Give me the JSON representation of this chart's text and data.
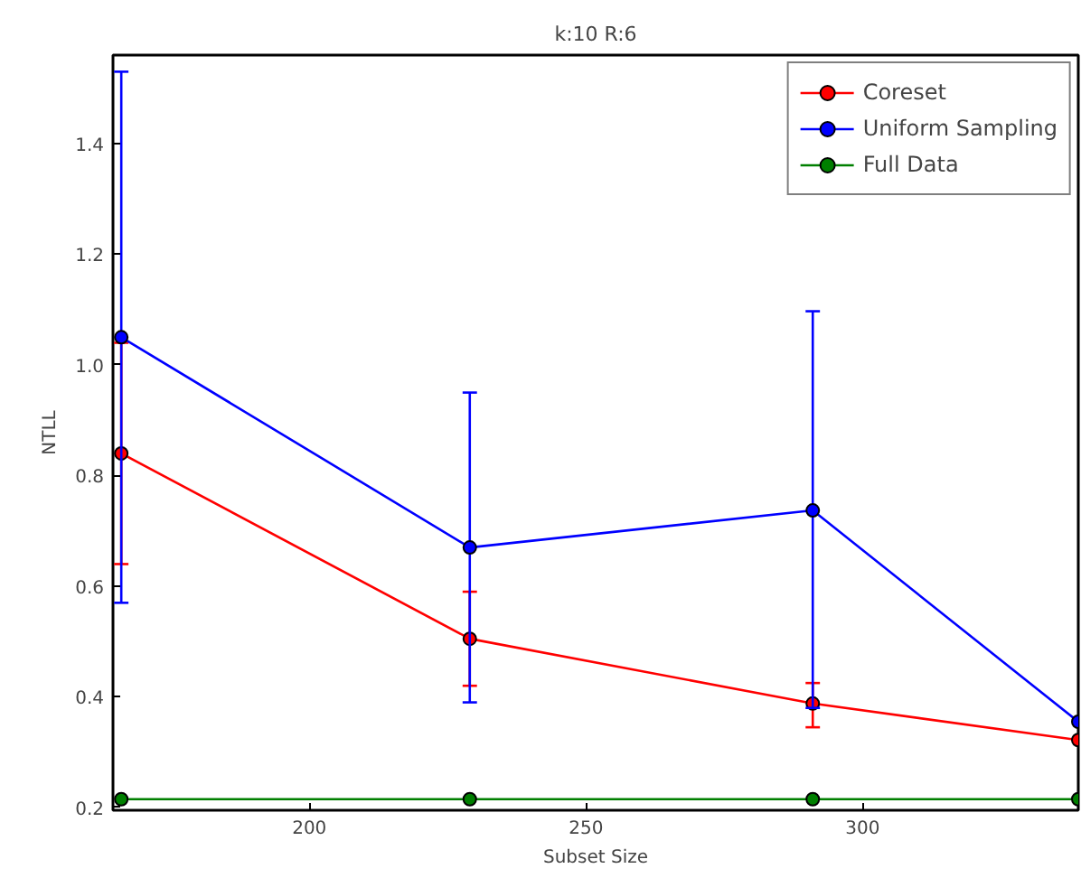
{
  "chart_data": {
    "type": "line",
    "title": "k:10 R:6",
    "xlabel": "Subset Size",
    "ylabel": "NTLL",
    "x": [
      166,
      229,
      291,
      339
    ],
    "xlim": [
      164.5,
      339
    ],
    "ylim": [
      0.195,
      1.56
    ],
    "xticks": [
      200,
      250,
      300
    ],
    "yticks": [
      0.2,
      0.4,
      0.6,
      0.8,
      {
        "value": 1.0,
        "label": "1.0"
      },
      1.2,
      1.4
    ],
    "series": [
      {
        "name": "Coreset",
        "color": "#ff0000",
        "values": [
          0.84,
          0.505,
          0.388,
          0.322
        ],
        "errors": [
          [
            0.64,
            1.04
          ],
          [
            0.42,
            0.59
          ],
          [
            0.345,
            0.425
          ],
          null
        ]
      },
      {
        "name": "Uniform Sampling",
        "color": "#0000ff",
        "values": [
          1.05,
          0.67,
          0.737,
          0.355
        ],
        "errors": [
          [
            0.57,
            1.53
          ],
          [
            0.39,
            0.95
          ],
          [
            0.38,
            1.097
          ],
          null
        ]
      },
      {
        "name": "Full Data",
        "color": "#007f00",
        "values": [
          0.215,
          0.215,
          0.215,
          0.215
        ]
      }
    ],
    "marker": "circle",
    "legend": "top right",
    "grid": false
  }
}
